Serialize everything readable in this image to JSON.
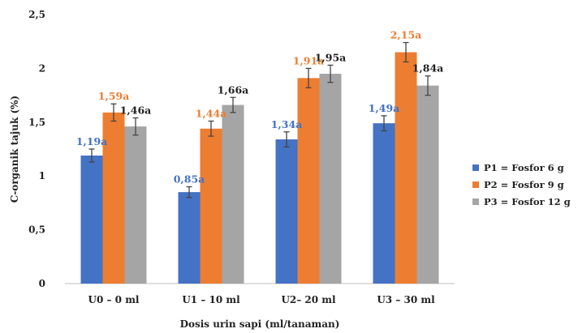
{
  "chart_data": {
    "type": "bar",
    "categories": [
      "U0 – 0 ml",
      "U1 – 10  ml",
      "U2– 20 ml",
      "U3 – 30 ml"
    ],
    "series": [
      {
        "name": "P1 = Fosfor 6 g",
        "color": "#4472C4",
        "label_color": "#4472C4",
        "values": [
          1.19,
          0.85,
          1.34,
          1.49
        ],
        "errors": [
          0.06,
          0.05,
          0.07,
          0.07
        ],
        "labels": [
          "1,19a",
          "0,85a",
          "1,34a",
          "1,49a"
        ]
      },
      {
        "name": "P2 = Fosfor 9 g",
        "color": "#ED7D31",
        "label_color": "#ED7D31",
        "values": [
          1.59,
          1.44,
          1.91,
          2.15
        ],
        "errors": [
          0.08,
          0.07,
          0.09,
          0.09
        ],
        "labels": [
          "1,59a",
          "1,44a",
          "1,91a",
          "2,15a"
        ]
      },
      {
        "name": "P3 = Fosfor 12 g",
        "color": "#A5A5A5",
        "label_color": "#222222",
        "values": [
          1.46,
          1.66,
          1.95,
          1.84
        ],
        "errors": [
          0.08,
          0.07,
          0.08,
          0.09
        ],
        "labels": [
          "1,46a",
          "1,66a",
          "1,95a",
          "1,84a"
        ]
      }
    ],
    "title": "",
    "xlabel": "Dosis urin sapi (ml/tanaman)",
    "ylabel": "C-organik tajuk (%)",
    "ylim": [
      0,
      2.5
    ],
    "yticks": [
      0,
      0.5,
      1,
      1.5,
      2,
      2.5
    ],
    "ytick_labels": [
      "0",
      "0,5",
      "1",
      "1,5",
      "2",
      "2,5"
    ],
    "grid": false,
    "legend_position": "right"
  }
}
